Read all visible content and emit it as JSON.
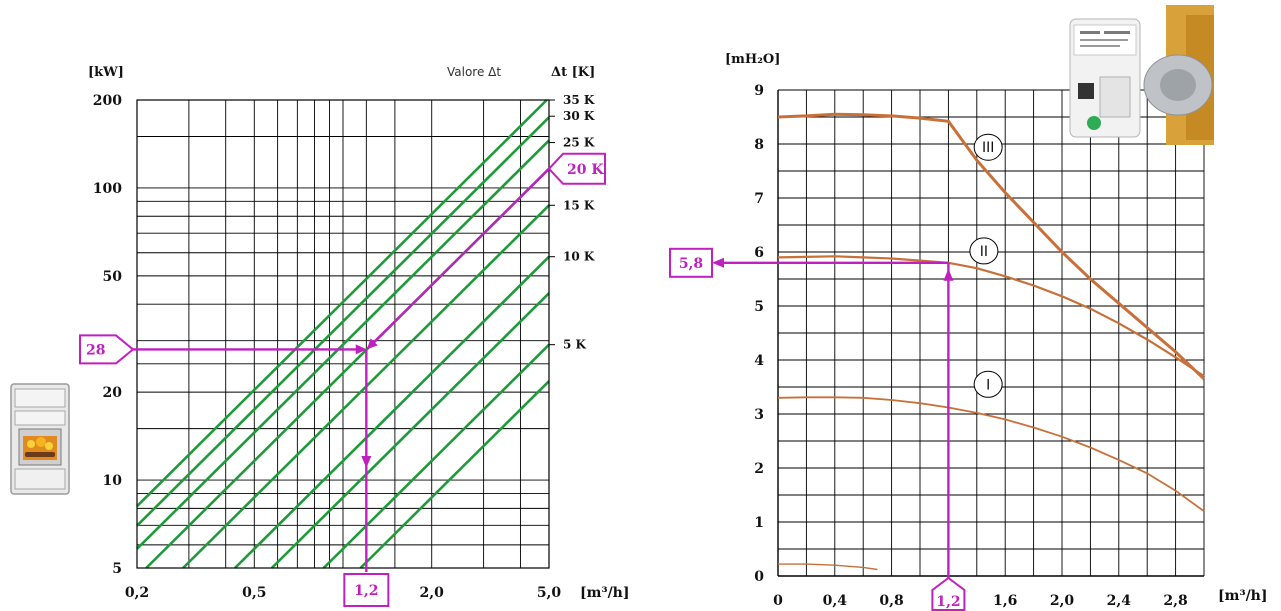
{
  "colors": {
    "grid": "#000000",
    "delta_t_lines": "#1f9a3a",
    "pump_curves": "#c8703a",
    "annotation": "#c020c0"
  },
  "icons": {
    "stove": "wood-stove-icon",
    "pump": "circulator-pump-photo"
  },
  "chart_data": [
    {
      "type": "line",
      "scale": "log-log",
      "ylabel": "[kW]",
      "xlabel": "[m³/h]",
      "legend_title": "Valore Δt",
      "legend_unit_label": "Δt [K]",
      "x_ticks": [
        "0,2",
        "0,5",
        "1,2",
        "2,0",
        "5,0"
      ],
      "y_ticks": [
        "5",
        "10",
        "20",
        "50",
        "100",
        "200"
      ],
      "xlim": [
        0.2,
        5.0
      ],
      "ylim": [
        5,
        200
      ],
      "grid": true,
      "series_labels": [
        "35 K",
        "30 K",
        "25 K",
        "20 K",
        "15 K",
        "10 K",
        "5 K"
      ],
      "series_dt": [
        35,
        30,
        25,
        20,
        15,
        10,
        5
      ],
      "extra_lines_dt": [
        7.5,
        3.75
      ],
      "reading": {
        "dt_label": "20 K",
        "power_label": "28",
        "power": 28,
        "flow_label": "1,2",
        "flow": 1.2
      }
    },
    {
      "type": "line",
      "ylabel": "[mH₂O]",
      "xlabel": "[m³/h]",
      "x_ticks": [
        "0",
        "0,4",
        "0,8",
        "1,2",
        "1,6",
        "2,0",
        "2,4",
        "2,8"
      ],
      "y_ticks": [
        "0",
        "1",
        "2",
        "3",
        "4",
        "5",
        "6",
        "7",
        "8",
        "9"
      ],
      "xlim": [
        0,
        3.0
      ],
      "ylim": [
        0,
        9
      ],
      "grid": true,
      "series": [
        {
          "name": "III",
          "x": [
            0,
            0.2,
            0.4,
            0.6,
            0.8,
            1.0,
            1.2,
            1.4,
            1.6,
            1.8,
            2.0,
            2.2,
            2.4,
            2.6,
            2.8,
            3.0
          ],
          "y": [
            8.5,
            8.52,
            8.55,
            8.54,
            8.52,
            8.48,
            8.42,
            7.7,
            7.1,
            6.55,
            6.0,
            5.5,
            5.05,
            4.6,
            4.15,
            3.65
          ]
        },
        {
          "name": "II",
          "x": [
            0,
            0.2,
            0.4,
            0.6,
            0.8,
            1.0,
            1.2,
            1.4,
            1.6,
            1.8,
            2.0,
            2.2,
            2.4,
            2.6,
            2.8,
            3.0
          ],
          "y": [
            5.9,
            5.91,
            5.92,
            5.9,
            5.88,
            5.84,
            5.8,
            5.7,
            5.55,
            5.38,
            5.18,
            4.95,
            4.68,
            4.38,
            4.05,
            3.7
          ]
        },
        {
          "name": "I",
          "x": [
            0,
            0.2,
            0.4,
            0.6,
            0.8,
            1.0,
            1.2,
            1.4,
            1.6,
            1.8,
            2.0,
            2.2,
            2.4,
            2.6,
            2.8,
            3.0
          ],
          "y": [
            3.3,
            3.31,
            3.31,
            3.3,
            3.26,
            3.2,
            3.12,
            3.02,
            2.9,
            2.75,
            2.58,
            2.38,
            2.15,
            1.9,
            1.58,
            1.2
          ]
        },
        {
          "x": [
            0,
            0.2,
            0.4,
            0.6,
            0.7
          ],
          "y": [
            0.22,
            0.22,
            0.2,
            0.16,
            0.12
          ]
        }
      ],
      "reading": {
        "flow_label": "1,2",
        "flow": 1.2,
        "head_label": "5,8",
        "head": 5.8
      }
    }
  ]
}
